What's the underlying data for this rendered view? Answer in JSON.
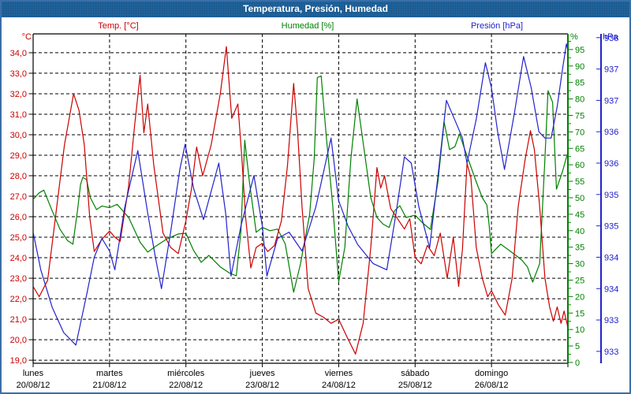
{
  "window": {
    "title": "Temperatura, Presión, Humedad"
  },
  "legend": [
    {
      "key": "temp",
      "label": "Temp. [°C]",
      "color": "#cc0000"
    },
    {
      "key": "hum",
      "label": "Humedad [%]",
      "color": "#008000"
    },
    {
      "key": "pres",
      "label": "Presión [hPa]",
      "color": "#2222cc"
    }
  ],
  "axis_headers": {
    "left": "°C",
    "right_inner": "%",
    "right_outer": "hPa"
  },
  "chart_data": {
    "type": "line",
    "title": "Temperatura, Presión, Humedad",
    "grid": {
      "horizontal": "dashed",
      "vertical": "dashed"
    },
    "x_axis": {
      "unit": "days",
      "range": [
        0,
        7
      ],
      "ticks": [
        {
          "name": "lunes",
          "date": "20/08/12"
        },
        {
          "name": "martes",
          "date": "21/08/12"
        },
        {
          "name": "miércoles",
          "date": "22/08/12"
        },
        {
          "name": "jueves",
          "date": "23/08/12"
        },
        {
          "name": "viernes",
          "date": "24/08/12"
        },
        {
          "name": "sábado",
          "date": "25/08/12"
        },
        {
          "name": "domingo",
          "date": "26/08/12"
        }
      ]
    },
    "y_axes": {
      "temp": {
        "label": "°C",
        "side": "left",
        "color": "#cc0000",
        "min": 18.85,
        "max": 34.92,
        "tick_values": [
          19,
          20,
          21,
          22,
          23,
          24,
          25,
          26,
          27,
          28,
          29,
          30,
          31,
          32,
          33,
          34
        ],
        "tick_labels": [
          "19,0",
          "20,0",
          "21,0",
          "22,0",
          "23,0",
          "24,0",
          "25,0",
          "26,0",
          "27,0",
          "28,0",
          "29,0",
          "30,0",
          "31,0",
          "32,0",
          "33,0",
          "34,0"
        ]
      },
      "hum": {
        "label": "%",
        "side": "right_inner",
        "color": "#008000",
        "min": -0.25,
        "max": 99.75,
        "minor_step": 2.5,
        "tick_values": [
          0,
          5,
          10,
          15,
          20,
          25,
          30,
          35,
          40,
          45,
          50,
          55,
          60,
          65,
          70,
          75,
          80,
          85,
          90,
          95
        ],
        "tick_labels": [
          "0",
          "5",
          "10",
          "15",
          "20",
          "25",
          "30",
          "35",
          "40",
          "45",
          "50",
          "55",
          "60",
          "65",
          "70",
          "75",
          "80",
          "85",
          "90",
          "95"
        ]
      },
      "pres": {
        "label": "hPa",
        "side": "right_outer",
        "color": "#2222cc",
        "min": 932.81,
        "max": 938.06,
        "tick_values": [
          933,
          933.5,
          934,
          934.5,
          935,
          935.5,
          936,
          936.5,
          937,
          937.5,
          938
        ],
        "tick_labels": [
          "933",
          "933",
          "934",
          "934",
          "935",
          "935",
          "936",
          "936",
          "937",
          "937",
          "938"
        ]
      }
    },
    "series": [
      {
        "key": "hum",
        "name": "Humedad [%]",
        "axis": "hum",
        "color": "#008000",
        "points": [
          [
            0,
            49.5
          ],
          [
            0.08,
            51.5
          ],
          [
            0.14,
            52.3
          ],
          [
            0.25,
            46
          ],
          [
            0.35,
            40.5
          ],
          [
            0.45,
            37
          ],
          [
            0.52,
            35.9
          ],
          [
            0.58,
            46
          ],
          [
            0.62,
            54
          ],
          [
            0.65,
            56.2
          ],
          [
            0.7,
            55.5
          ],
          [
            0.75,
            50
          ],
          [
            0.83,
            46.4
          ],
          [
            0.9,
            47.5
          ],
          [
            1,
            47
          ],
          [
            1.1,
            48
          ],
          [
            1.25,
            44
          ],
          [
            1.4,
            36.5
          ],
          [
            1.5,
            33.5
          ],
          [
            1.6,
            35.2
          ],
          [
            1.75,
            37.5
          ],
          [
            1.9,
            39
          ],
          [
            2,
            39.2
          ],
          [
            2.1,
            34
          ],
          [
            2.2,
            30.4
          ],
          [
            2.3,
            32.5
          ],
          [
            2.45,
            29
          ],
          [
            2.58,
            27
          ],
          [
            2.66,
            26.3
          ],
          [
            2.72,
            40
          ],
          [
            2.77,
            67.5
          ],
          [
            2.83,
            55
          ],
          [
            2.92,
            39.5
          ],
          [
            3,
            41
          ],
          [
            3.1,
            40
          ],
          [
            3.2,
            40.5
          ],
          [
            3.3,
            36
          ],
          [
            3.41,
            21.3
          ],
          [
            3.5,
            30
          ],
          [
            3.62,
            45
          ],
          [
            3.68,
            62
          ],
          [
            3.72,
            86.5
          ],
          [
            3.77,
            87
          ],
          [
            3.84,
            68
          ],
          [
            3.92,
            48
          ],
          [
            4,
            24.5
          ],
          [
            4.08,
            35
          ],
          [
            4.16,
            62
          ],
          [
            4.24,
            80
          ],
          [
            4.33,
            65
          ],
          [
            4.42,
            50
          ],
          [
            4.5,
            44
          ],
          [
            4.58,
            42
          ],
          [
            4.66,
            41
          ],
          [
            4.73,
            46
          ],
          [
            4.8,
            47.6
          ],
          [
            4.88,
            44
          ],
          [
            5,
            44.7
          ],
          [
            5.1,
            42.3
          ],
          [
            5.2,
            40.4
          ],
          [
            5.3,
            55
          ],
          [
            5.38,
            73
          ],
          [
            5.45,
            64.6
          ],
          [
            5.52,
            65.5
          ],
          [
            5.58,
            69.4
          ],
          [
            5.66,
            64
          ],
          [
            5.79,
            55.5
          ],
          [
            5.88,
            50
          ],
          [
            5.94,
            47.8
          ],
          [
            5.97,
            41.6
          ],
          [
            6,
            33
          ],
          [
            6.06,
            34.5
          ],
          [
            6.12,
            35.9
          ],
          [
            6.22,
            34.2
          ],
          [
            6.32,
            32.5
          ],
          [
            6.4,
            31
          ],
          [
            6.47,
            29
          ],
          [
            6.54,
            24.4
          ],
          [
            6.63,
            30
          ],
          [
            6.7,
            62
          ],
          [
            6.74,
            82.5
          ],
          [
            6.8,
            79
          ],
          [
            6.85,
            52.6
          ],
          [
            6.93,
            58
          ],
          [
            7,
            63.9
          ]
        ]
      },
      {
        "key": "temp",
        "name": "Temp. [°C]",
        "axis": "temp",
        "color": "#cc0000",
        "points": [
          [
            0,
            22.6
          ],
          [
            0.08,
            22.1
          ],
          [
            0.19,
            22.9
          ],
          [
            0.31,
            26.5
          ],
          [
            0.41,
            29.5
          ],
          [
            0.53,
            32
          ],
          [
            0.6,
            31.2
          ],
          [
            0.67,
            29.5
          ],
          [
            0.74,
            26
          ],
          [
            0.8,
            24.3
          ],
          [
            0.9,
            24.9
          ],
          [
            1,
            25.3
          ],
          [
            1.07,
            25
          ],
          [
            1.14,
            24.8
          ],
          [
            1.25,
            27.5
          ],
          [
            1.33,
            30.5
          ],
          [
            1.4,
            32.9
          ],
          [
            1.45,
            30.1
          ],
          [
            1.5,
            31.5
          ],
          [
            1.58,
            28.5
          ],
          [
            1.7,
            25.2
          ],
          [
            1.8,
            24.5
          ],
          [
            1.9,
            24.2
          ],
          [
            2,
            25.8
          ],
          [
            2.07,
            27.3
          ],
          [
            2.14,
            29.4
          ],
          [
            2.22,
            28
          ],
          [
            2.33,
            29.5
          ],
          [
            2.45,
            32
          ],
          [
            2.53,
            34.3
          ],
          [
            2.6,
            30.8
          ],
          [
            2.68,
            31.5
          ],
          [
            2.73,
            29
          ],
          [
            2.78,
            26
          ],
          [
            2.85,
            23.5
          ],
          [
            2.92,
            24.5
          ],
          [
            3,
            24.7
          ],
          [
            3.07,
            24.3
          ],
          [
            3.16,
            24.6
          ],
          [
            3.25,
            25.8
          ],
          [
            3.33,
            28.5
          ],
          [
            3.41,
            32.5
          ],
          [
            3.46,
            30.3
          ],
          [
            3.52,
            26.5
          ],
          [
            3.6,
            22.5
          ],
          [
            3.7,
            21.3
          ],
          [
            3.8,
            21.1
          ],
          [
            3.9,
            20.8
          ],
          [
            4,
            21
          ],
          [
            4.1,
            20.2
          ],
          [
            4.22,
            19.3
          ],
          [
            4.32,
            20.8
          ],
          [
            4.42,
            24.5
          ],
          [
            4.5,
            28.4
          ],
          [
            4.55,
            27.4
          ],
          [
            4.6,
            28
          ],
          [
            4.68,
            26.4
          ],
          [
            4.77,
            25.9
          ],
          [
            4.86,
            25.4
          ],
          [
            4.93,
            25.9
          ],
          [
            5,
            24
          ],
          [
            5.08,
            23.7
          ],
          [
            5.16,
            24.6
          ],
          [
            5.25,
            24.1
          ],
          [
            5.33,
            25.2
          ],
          [
            5.42,
            23
          ],
          [
            5.5,
            25
          ],
          [
            5.57,
            22.6
          ],
          [
            5.62,
            24.4
          ],
          [
            5.68,
            28.6
          ],
          [
            5.73,
            27.9
          ],
          [
            5.8,
            24.5
          ],
          [
            5.88,
            23
          ],
          [
            5.95,
            22.1
          ],
          [
            6,
            22.4
          ],
          [
            6.09,
            21.7
          ],
          [
            6.18,
            21.2
          ],
          [
            6.27,
            23
          ],
          [
            6.35,
            26.5
          ],
          [
            6.44,
            28.8
          ],
          [
            6.51,
            30.2
          ],
          [
            6.56,
            29.3
          ],
          [
            6.63,
            26.5
          ],
          [
            6.7,
            23
          ],
          [
            6.76,
            21.6
          ],
          [
            6.81,
            20.9
          ],
          [
            6.86,
            21.6
          ],
          [
            6.91,
            20.8
          ],
          [
            6.95,
            21.4
          ],
          [
            7,
            20.6
          ]
        ]
      },
      {
        "key": "pres",
        "name": "Presión [hPa]",
        "axis": "pres",
        "color": "#2222cc",
        "points": [
          [
            0,
            934.9
          ],
          [
            0.1,
            934.3
          ],
          [
            0.25,
            933.7
          ],
          [
            0.4,
            933.3
          ],
          [
            0.56,
            933.1
          ],
          [
            0.7,
            933.9
          ],
          [
            0.8,
            934.5
          ],
          [
            0.9,
            934.8
          ],
          [
            1,
            934.6
          ],
          [
            1.07,
            934.3
          ],
          [
            1.2,
            935.3
          ],
          [
            1.37,
            936.2
          ],
          [
            1.5,
            935.2
          ],
          [
            1.6,
            934.5
          ],
          [
            1.68,
            934
          ],
          [
            1.8,
            934.9
          ],
          [
            1.92,
            935.9
          ],
          [
            1.99,
            936.3
          ],
          [
            2.1,
            935.6
          ],
          [
            2.23,
            935.1
          ],
          [
            2.43,
            936
          ],
          [
            2.52,
            935.2
          ],
          [
            2.59,
            934.2
          ],
          [
            2.72,
            935
          ],
          [
            2.89,
            935.8
          ],
          [
            3,
            935
          ],
          [
            3.06,
            934.2
          ],
          [
            3.2,
            934.8
          ],
          [
            3.35,
            934.9
          ],
          [
            3.52,
            934.6
          ],
          [
            3.7,
            935.3
          ],
          [
            3.9,
            936.4
          ],
          [
            4,
            935.4
          ],
          [
            4.12,
            935
          ],
          [
            4.25,
            934.7
          ],
          [
            4.45,
            934.4
          ],
          [
            4.63,
            934.3
          ],
          [
            4.75,
            935.2
          ],
          [
            4.86,
            936.1
          ],
          [
            4.95,
            936
          ],
          [
            5.05,
            935.3
          ],
          [
            5.19,
            934.65
          ],
          [
            5.3,
            935.8
          ],
          [
            5.41,
            937
          ],
          [
            5.48,
            936.8
          ],
          [
            5.55,
            936.6
          ],
          [
            5.62,
            936.4
          ],
          [
            5.68,
            936
          ],
          [
            5.8,
            936.7
          ],
          [
            5.92,
            937.6
          ],
          [
            6,
            937.2
          ],
          [
            6.08,
            936.5
          ],
          [
            6.17,
            935.9
          ],
          [
            6.3,
            936.8
          ],
          [
            6.42,
            937.7
          ],
          [
            6.52,
            937.2
          ],
          [
            6.62,
            936.5
          ],
          [
            6.7,
            936.4
          ],
          [
            6.78,
            936.4
          ],
          [
            6.86,
            936.9
          ],
          [
            6.93,
            937.5
          ],
          [
            6.98,
            937.9
          ],
          [
            7,
            937.8
          ]
        ]
      }
    ]
  }
}
